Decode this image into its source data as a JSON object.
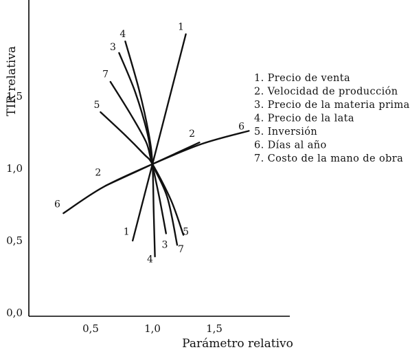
{
  "chart_data": {
    "type": "line",
    "xlabel": "Parámetro relativo",
    "ylabel": "TIR relativa",
    "xlim": [
      0,
      2.0
    ],
    "ylim": [
      0,
      2.2
    ],
    "x_ticks": [
      {
        "value": 0.5,
        "label": "0,5"
      },
      {
        "value": 1.0,
        "label": "1,0"
      },
      {
        "value": 1.5,
        "label": "1,5"
      }
    ],
    "y_ticks": [
      {
        "value": 0.0,
        "label": "0,0"
      },
      {
        "value": 0.5,
        "label": "0,5"
      },
      {
        "value": 1.0,
        "label": "1,0"
      },
      {
        "value": 1.5,
        "label": "1,5"
      }
    ],
    "grid": false,
    "legend_position": "right",
    "legend": [
      "1. Precio de venta",
      "2. Velocidad de producción",
      "3. Precio de la materia prima",
      "4. Precio de la lata",
      "5. Inversión",
      "6. Días al año",
      "7. Costo de la mano de obra"
    ],
    "series": [
      {
        "id": "1",
        "points": [
          [
            0.84,
            0.5
          ],
          [
            1.0,
            1.03
          ],
          [
            1.27,
            1.93
          ]
        ]
      },
      {
        "id": "2",
        "points": [
          [
            0.62,
            0.88
          ],
          [
            1.0,
            1.03
          ],
          [
            1.38,
            1.18
          ]
        ]
      },
      {
        "id": "3",
        "points": [
          [
            0.73,
            1.8
          ],
          [
            0.86,
            1.53
          ],
          [
            0.96,
            1.24
          ],
          [
            1.0,
            1.03
          ],
          [
            1.06,
            0.78
          ],
          [
            1.11,
            0.55
          ]
        ]
      },
      {
        "id": "4",
        "points": [
          [
            0.78,
            1.88
          ],
          [
            0.89,
            1.55
          ],
          [
            0.97,
            1.24
          ],
          [
            1.0,
            1.03
          ],
          [
            1.01,
            0.7
          ],
          [
            1.02,
            0.39
          ]
        ]
      },
      {
        "id": "5",
        "points": [
          [
            0.58,
            1.39
          ],
          [
            0.78,
            1.23
          ],
          [
            0.93,
            1.1
          ],
          [
            1.0,
            1.03
          ],
          [
            1.15,
            0.78
          ],
          [
            1.25,
            0.54
          ]
        ]
      },
      {
        "id": "6",
        "points": [
          [
            0.28,
            0.69
          ],
          [
            0.6,
            0.87
          ],
          [
            1.0,
            1.03
          ],
          [
            1.4,
            1.17
          ],
          [
            1.78,
            1.26
          ]
        ]
      },
      {
        "id": "7",
        "points": [
          [
            0.66,
            1.6
          ],
          [
            0.82,
            1.38
          ],
          [
            0.95,
            1.18
          ],
          [
            1.0,
            1.03
          ],
          [
            1.12,
            0.8
          ],
          [
            1.2,
            0.47
          ]
        ]
      }
    ],
    "line_labels": [
      {
        "text": "1",
        "series": "1",
        "at": [
          1.23,
          1.96
        ]
      },
      {
        "text": "1",
        "series": "1",
        "at": [
          0.79,
          0.54
        ]
      },
      {
        "text": "2",
        "series": "2",
        "at": [
          1.32,
          1.22
        ]
      },
      {
        "text": "2",
        "series": "2",
        "at": [
          0.56,
          0.95
        ]
      },
      {
        "text": "3",
        "series": "3",
        "at": [
          0.68,
          1.82
        ]
      },
      {
        "text": "3",
        "series": "3",
        "at": [
          1.1,
          0.45
        ]
      },
      {
        "text": "4",
        "series": "4",
        "at": [
          0.76,
          1.91
        ]
      },
      {
        "text": "4",
        "series": "4",
        "at": [
          0.98,
          0.35
        ]
      },
      {
        "text": "5",
        "series": "5",
        "at": [
          0.55,
          1.42
        ]
      },
      {
        "text": "5",
        "series": "5",
        "at": [
          1.27,
          0.54
        ]
      },
      {
        "text": "6",
        "series": "6",
        "at": [
          1.72,
          1.27
        ]
      },
      {
        "text": "6",
        "series": "6",
        "at": [
          0.23,
          0.73
        ]
      },
      {
        "text": "7",
        "series": "7",
        "at": [
          0.62,
          1.63
        ]
      },
      {
        "text": "7",
        "series": "7",
        "at": [
          1.23,
          0.42
        ]
      }
    ]
  }
}
